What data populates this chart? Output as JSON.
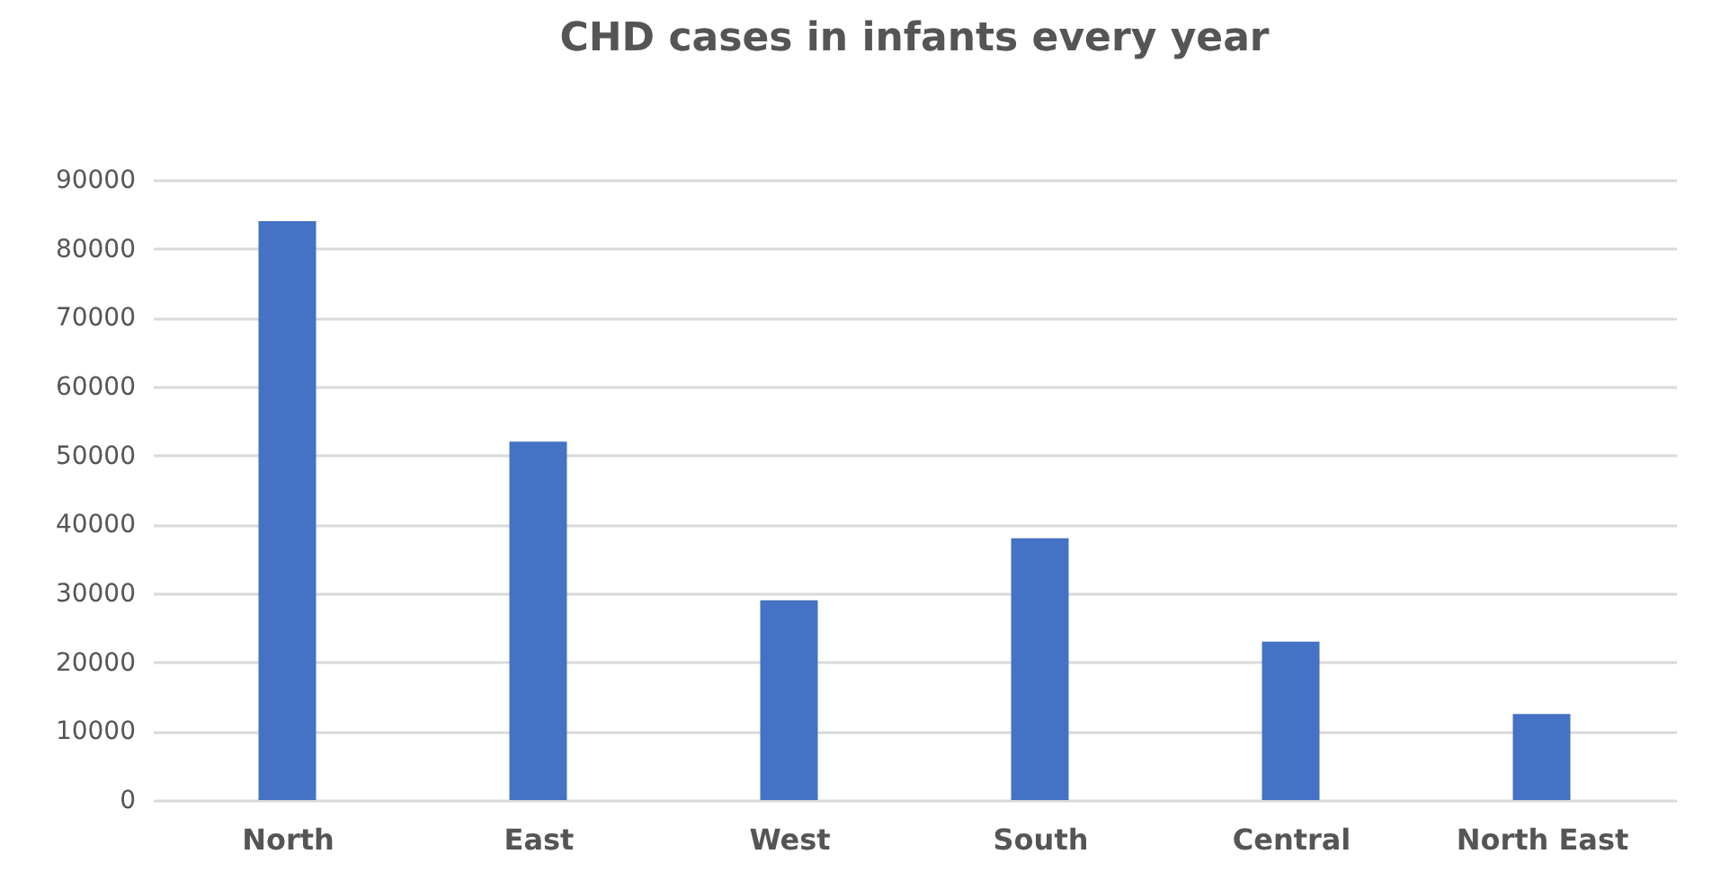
{
  "chart_data": {
    "type": "bar",
    "title": "CHD cases in infants every year",
    "categories": [
      "North",
      "East",
      "West",
      "South",
      "Central",
      "North East"
    ],
    "values": [
      84000,
      52000,
      29000,
      38000,
      23000,
      12500
    ],
    "color": "#4472c4",
    "ylim": [
      0,
      90000
    ],
    "yticks": [
      0,
      10000,
      20000,
      30000,
      40000,
      50000,
      60000,
      70000,
      80000,
      90000
    ],
    "grid": "y"
  }
}
